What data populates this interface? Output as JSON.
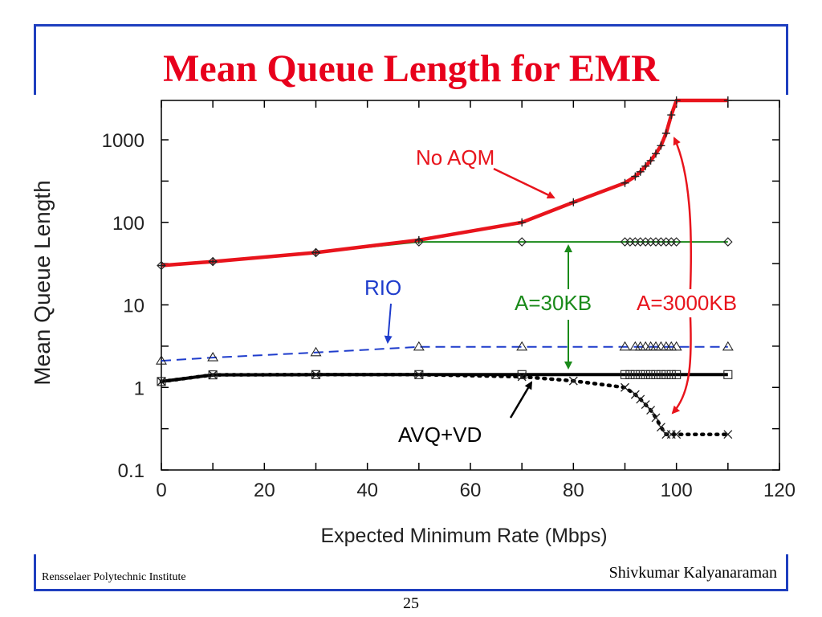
{
  "slide": {
    "title": "Mean Queue Length for EMR",
    "footer_left": "Rensselaer Polytechnic Institute",
    "footer_right": "Shivkumar Kalyanaraman",
    "page_number": "25"
  },
  "colors": {
    "frame": "#1f3fbf",
    "title": "#e8001c"
  },
  "chart_data": {
    "type": "line",
    "title": "",
    "xlabel": "Expected Minimum Rate (Mbps)",
    "ylabel": "Mean Queue Length",
    "xlim": [
      0,
      120
    ],
    "ylim": [
      0.1,
      3000
    ],
    "yscale": "log",
    "x_ticks": [
      0,
      20,
      40,
      60,
      80,
      100,
      120
    ],
    "y_ticks": [
      {
        "value": 0.1,
        "label": "0.1"
      },
      {
        "value": 1,
        "label": "1"
      },
      {
        "value": 10,
        "label": "10"
      },
      {
        "value": 100,
        "label": "100"
      },
      {
        "value": 1000,
        "label": "1000"
      }
    ],
    "grid": false,
    "series": [
      {
        "name": "No AQM",
        "color": "#e8141c",
        "dash": "solid",
        "marker": "plus",
        "points": [
          [
            0,
            30
          ],
          [
            10,
            33.5
          ],
          [
            30,
            43
          ],
          [
            50,
            61
          ],
          [
            70,
            100
          ],
          [
            80,
            175
          ],
          [
            90,
            300
          ],
          [
            92,
            360
          ],
          [
            93,
            410
          ],
          [
            94,
            480
          ],
          [
            95,
            560
          ],
          [
            96,
            680
          ],
          [
            97,
            850
          ],
          [
            98,
            1200
          ],
          [
            99,
            2000
          ],
          [
            100,
            3000
          ],
          [
            110,
            3000
          ]
        ]
      },
      {
        "name": "A=30KB",
        "color": "#1a8a1a",
        "dash": "solid",
        "marker": "diamond",
        "points": [
          [
            0,
            30
          ],
          [
            10,
            33.5
          ],
          [
            30,
            43
          ],
          [
            50,
            58
          ],
          [
            70,
            58
          ],
          [
            90,
            58
          ],
          [
            91,
            58
          ],
          [
            92,
            58
          ],
          [
            93,
            58
          ],
          [
            94,
            58
          ],
          [
            95,
            58
          ],
          [
            96,
            58
          ],
          [
            97,
            58
          ],
          [
            98,
            58
          ],
          [
            99,
            58
          ],
          [
            100,
            58
          ],
          [
            110,
            58
          ]
        ]
      },
      {
        "name": "RIO",
        "color": "#1e3ccc",
        "dash": "dashed",
        "marker": "triangle",
        "points": [
          [
            0,
            2.1
          ],
          [
            10,
            2.3
          ],
          [
            30,
            2.65
          ],
          [
            50,
            3.1
          ],
          [
            70,
            3.1
          ],
          [
            90,
            3.1
          ],
          [
            92,
            3.1
          ],
          [
            93,
            3.1
          ],
          [
            94,
            3.1
          ],
          [
            95,
            3.1
          ],
          [
            96,
            3.1
          ],
          [
            97,
            3.1
          ],
          [
            98,
            3.1
          ],
          [
            99,
            3.1
          ],
          [
            100,
            3.1
          ],
          [
            110,
            3.1
          ]
        ]
      },
      {
        "name": "AVQ+VD",
        "color": "#000000",
        "dash": "solid",
        "marker": "square",
        "points": [
          [
            0,
            1.18
          ],
          [
            10,
            1.42
          ],
          [
            30,
            1.43
          ],
          [
            50,
            1.43
          ],
          [
            70,
            1.43
          ],
          [
            90,
            1.43
          ],
          [
            91,
            1.43
          ],
          [
            92,
            1.43
          ],
          [
            93,
            1.43
          ],
          [
            94,
            1.43
          ],
          [
            95,
            1.43
          ],
          [
            96,
            1.43
          ],
          [
            97,
            1.43
          ],
          [
            98,
            1.43
          ],
          [
            99,
            1.43
          ],
          [
            100,
            1.43
          ],
          [
            110,
            1.43
          ]
        ]
      },
      {
        "name": "A=3000KB",
        "color": "#000000",
        "dash": "dotted",
        "marker": "x",
        "points": [
          [
            0,
            1.18
          ],
          [
            10,
            1.42
          ],
          [
            30,
            1.43
          ],
          [
            50,
            1.43
          ],
          [
            70,
            1.35
          ],
          [
            80,
            1.2
          ],
          [
            90,
            1.0
          ],
          [
            92,
            0.82
          ],
          [
            93,
            0.72
          ],
          [
            94,
            0.62
          ],
          [
            95,
            0.53
          ],
          [
            96,
            0.43
          ],
          [
            97,
            0.33
          ],
          [
            98,
            0.27
          ],
          [
            99,
            0.27
          ],
          [
            100,
            0.27
          ],
          [
            110,
            0.27
          ]
        ]
      }
    ],
    "annotations": [
      {
        "text": "No AQM",
        "color": "#e8141c"
      },
      {
        "text": "RIO",
        "color": "#1e3ccc"
      },
      {
        "text": "A=30KB",
        "color": "#1a8a1a"
      },
      {
        "text": "A=3000KB",
        "color": "#e8141c"
      },
      {
        "text": "AVQ+VD",
        "color": "#000000"
      }
    ]
  }
}
